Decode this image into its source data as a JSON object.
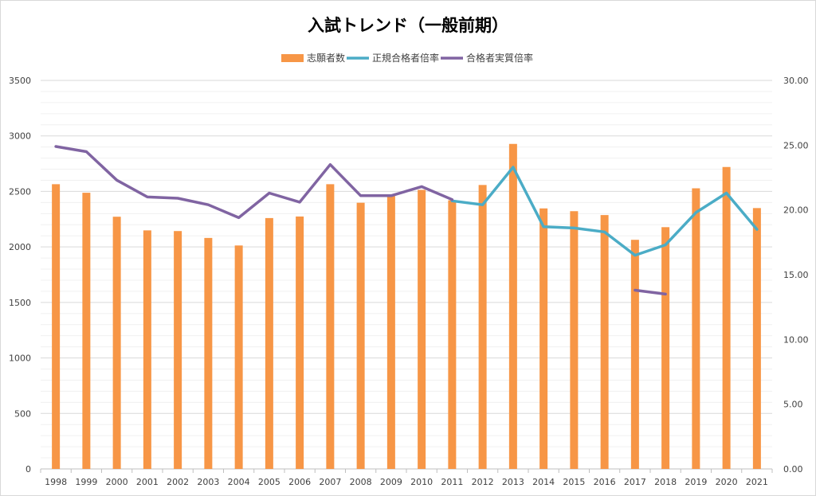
{
  "chart_data": {
    "type": "bar",
    "title": "入試トレンド（一般前期）",
    "categories": [
      "1998",
      "1999",
      "2000",
      "2001",
      "2002",
      "2003",
      "2004",
      "2005",
      "2006",
      "2007",
      "2008",
      "2009",
      "2010",
      "2011",
      "2012",
      "2013",
      "2014",
      "2015",
      "2016",
      "2017",
      "2018",
      "2019",
      "2020",
      "2021"
    ],
    "series": [
      {
        "name": "志願者数",
        "type": "bar",
        "axis": "left",
        "color": "#F79646",
        "values": [
          2565,
          2488,
          2272,
          2149,
          2143,
          2081,
          2013,
          2260,
          2274,
          2565,
          2398,
          2461,
          2514,
          2420,
          2558,
          2928,
          2347,
          2322,
          2287,
          2064,
          2178,
          2528,
          2720,
          2350
        ]
      },
      {
        "name": "正規合格者倍率",
        "type": "line",
        "axis": "right",
        "color": "#4BACC6",
        "values": [
          null,
          null,
          null,
          null,
          null,
          null,
          null,
          null,
          null,
          null,
          null,
          null,
          null,
          20.7,
          20.4,
          23.3,
          18.7,
          18.6,
          18.3,
          16.5,
          17.3,
          19.8,
          21.3,
          18.5
        ]
      },
      {
        "name": "合格者実質倍率",
        "type": "line",
        "axis": "right",
        "color": "#8064A2",
        "values": [
          24.9,
          24.5,
          22.3,
          21.0,
          20.9,
          20.4,
          19.4,
          21.3,
          20.6,
          23.5,
          21.1,
          21.1,
          21.8,
          20.8,
          null,
          null,
          null,
          null,
          null,
          13.8,
          13.5,
          null,
          null,
          null
        ]
      }
    ],
    "y_left": {
      "min": 0,
      "max": 3500,
      "step": 500,
      "tick_labels": [
        "0",
        "500",
        "1000",
        "1500",
        "2000",
        "2500",
        "3000",
        "3500"
      ]
    },
    "y_right": {
      "min": 0,
      "max": 30,
      "step": 5,
      "tick_labels": [
        "0.00",
        "5.00",
        "10.00",
        "15.00",
        "20.00",
        "25.00",
        "30.00"
      ]
    },
    "grid": true,
    "legend": "top-center"
  }
}
